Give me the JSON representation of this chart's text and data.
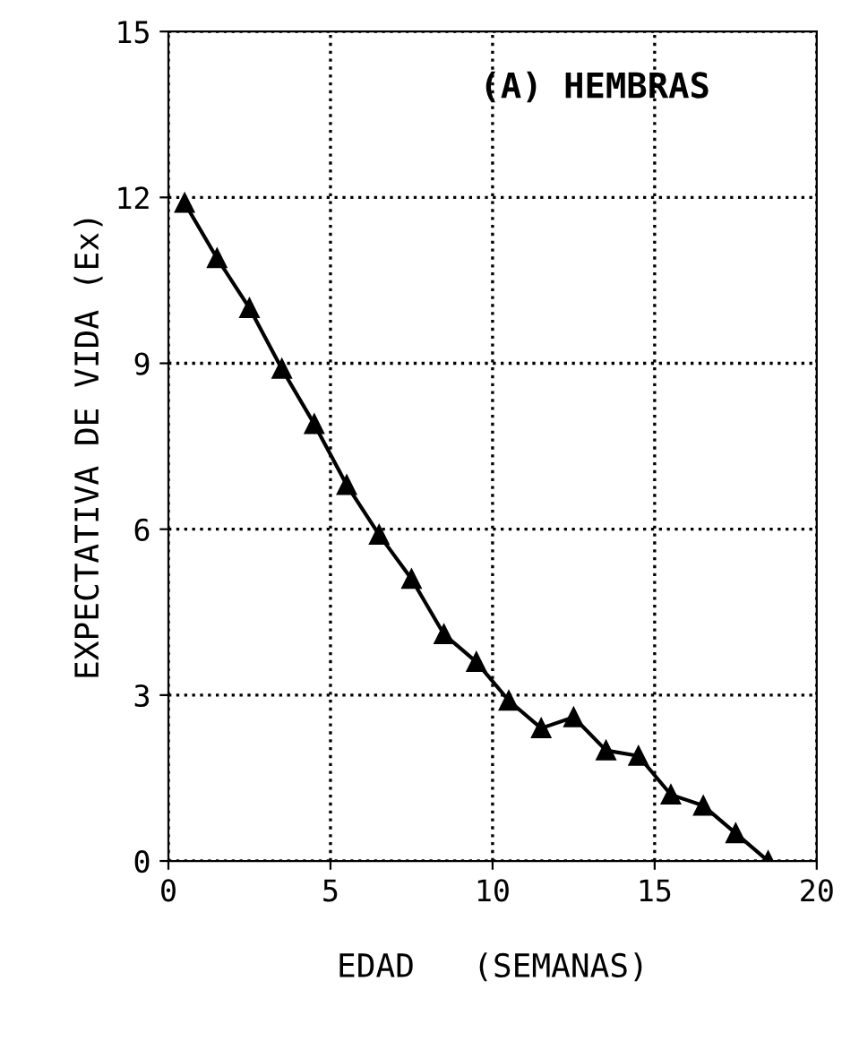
{
  "chart_data": {
    "type": "line",
    "xlabel": "EDAD   (SEMANAS)",
    "ylabel": "EXPECTATIVA DE VIDA (Ex)",
    "annotations": [
      "(A) HEMBRAS"
    ],
    "x": [
      0.5,
      1.5,
      2.5,
      3.5,
      4.5,
      5.5,
      6.5,
      7.5,
      8.5,
      9.5,
      10.5,
      11.5,
      12.5,
      13.5,
      14.5,
      15.5,
      16.5,
      17.5,
      18.5
    ],
    "series": [
      {
        "color": "#000000",
        "values": [
          11.9,
          10.9,
          10.0,
          8.9,
          7.9,
          6.8,
          5.9,
          5.1,
          4.1,
          3.6,
          2.9,
          2.4,
          2.6,
          2.0,
          1.9,
          1.2,
          1.0,
          0.5,
          0.0
        ]
      }
    ],
    "xlim": [
      0,
      20
    ],
    "ylim": [
      0,
      15
    ],
    "xticks": [
      0,
      5,
      10,
      15,
      20
    ],
    "yticks": [
      0,
      3,
      6,
      9,
      12,
      15
    ],
    "grid": true,
    "marker": "triangle",
    "line_style": "solid"
  }
}
